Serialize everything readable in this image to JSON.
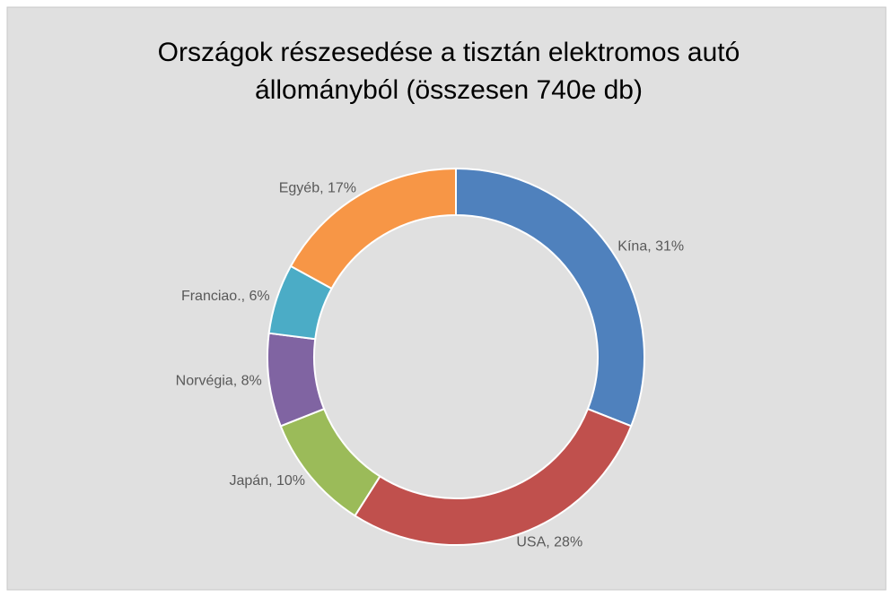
{
  "chart_data": {
    "type": "donut",
    "title": [
      "Országok részesedése a tisztán elektromos autó",
      "állományból (összesen 740e db)"
    ],
    "values": [
      31,
      28,
      10,
      8,
      6,
      17
    ],
    "value_labels": [
      "Kína, 31%",
      "USA, 28%",
      "Japán, 10%",
      "Norvégia, 8%",
      "Franciao., 6%",
      "Egyéb, 17%"
    ],
    "colors": [
      "#4f81bd",
      "#c0504d",
      "#9bbb59",
      "#8064a2",
      "#4bacc6",
      "#f79646"
    ]
  }
}
